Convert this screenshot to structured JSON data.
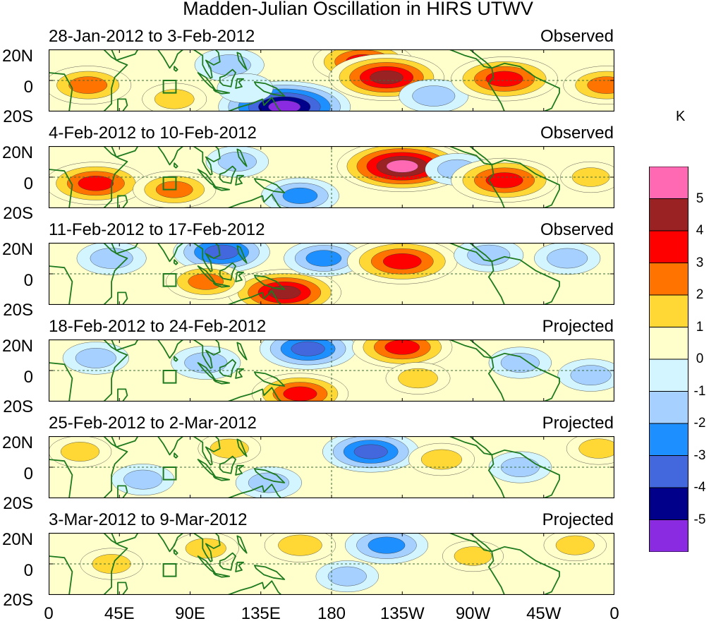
{
  "title": "Madden-Julian Oscillation in HIRS UTWV",
  "colorbar": {
    "unit": "K",
    "levels": [
      5,
      4,
      3,
      2,
      1,
      0,
      -1,
      -2,
      -3,
      -4,
      -5
    ],
    "level_labels": [
      "5",
      "4",
      "3",
      "2",
      "1",
      "0",
      "-1",
      "-2",
      "-3",
      "-4",
      "-5"
    ],
    "colors": [
      "#ff69b4",
      "#9b2222",
      "#ff0000",
      "#ff7400",
      "#ffd836",
      "#ffffcc",
      "#d3f5ff",
      "#a5d0ff",
      "#1e8fff",
      "#4367dd",
      "#00008b",
      "#8a2be2"
    ]
  },
  "chart_data": {
    "type": "contour-map-panels",
    "title": "Madden-Julian Oscillation in HIRS UTWV",
    "variable": "HIRS UTWV anomaly",
    "unit": "K",
    "x_ticks": [
      "0",
      "45E",
      "90E",
      "135E",
      "180",
      "135W",
      "90W",
      "45W",
      "0"
    ],
    "x_range_deg_east": [
      0,
      360
    ],
    "y_ticks": [
      "20N",
      "0",
      "20S"
    ],
    "y_range_deg": [
      -20,
      20
    ],
    "contour_levels": [
      -5,
      -4,
      -3,
      -2,
      -1,
      0,
      1,
      2,
      3,
      4,
      5
    ],
    "panels": [
      {
        "period": "28-Jan-2012 to 3-Feb-2012",
        "status": "Observed",
        "blobs": [
          {
            "lon": 25,
            "lat": -3,
            "value": 2.6
          },
          {
            "lon": 115,
            "lat": 10,
            "value": -1.6
          },
          {
            "lon": 150,
            "lat": -17,
            "value": -5.3
          },
          {
            "lon": 125,
            "lat": -5,
            "value": -0.8
          },
          {
            "lon": 200,
            "lat": 12,
            "value": 3.4
          },
          {
            "lon": 215,
            "lat": 2,
            "value": 4.3
          },
          {
            "lon": 245,
            "lat": -10,
            "value": -1.6
          },
          {
            "lon": 290,
            "lat": 1,
            "value": 3.8
          },
          {
            "lon": 355,
            "lat": -3,
            "value": 2.6
          },
          {
            "lon": 80,
            "lat": -12,
            "value": 1.3
          }
        ]
      },
      {
        "period": "4-Feb-2012 to 10-Feb-2012",
        "status": "Observed",
        "blobs": [
          {
            "lon": 30,
            "lat": -4,
            "value": 3.5
          },
          {
            "lon": 80,
            "lat": -8,
            "value": 2.4
          },
          {
            "lon": 120,
            "lat": 10,
            "value": -1.2
          },
          {
            "lon": 160,
            "lat": -12,
            "value": -2.1
          },
          {
            "lon": 225,
            "lat": 7,
            "value": 5.2
          },
          {
            "lon": 260,
            "lat": 5,
            "value": -1.3
          },
          {
            "lon": 290,
            "lat": -2,
            "value": 3.8
          },
          {
            "lon": 345,
            "lat": 0,
            "value": 1.1
          }
        ]
      },
      {
        "period": "11-Feb-2012 to 17-Feb-2012",
        "status": "Observed",
        "blobs": [
          {
            "lon": 40,
            "lat": 10,
            "value": -1.6
          },
          {
            "lon": 110,
            "lat": 14,
            "value": -3.2
          },
          {
            "lon": 150,
            "lat": -12,
            "value": 4.2
          },
          {
            "lon": 100,
            "lat": -5,
            "value": 2.2
          },
          {
            "lon": 175,
            "lat": 10,
            "value": -2.2
          },
          {
            "lon": 225,
            "lat": 8,
            "value": 4.0
          },
          {
            "lon": 280,
            "lat": 12,
            "value": -1.6
          },
          {
            "lon": 330,
            "lat": 10,
            "value": -1.4
          }
        ]
      },
      {
        "period": "18-Feb-2012 to 24-Feb-2012",
        "status": "Projected",
        "blobs": [
          {
            "lon": 30,
            "lat": 8,
            "value": -1.4
          },
          {
            "lon": 100,
            "lat": 5,
            "value": -1.6
          },
          {
            "lon": 165,
            "lat": 14,
            "value": -3.2
          },
          {
            "lon": 160,
            "lat": -15,
            "value": 3.2
          },
          {
            "lon": 225,
            "lat": 15,
            "value": 3.4
          },
          {
            "lon": 235,
            "lat": -5,
            "value": 1.3
          },
          {
            "lon": 300,
            "lat": 5,
            "value": -1.2
          },
          {
            "lon": 345,
            "lat": -3,
            "value": -1.4
          }
        ]
      },
      {
        "period": "25-Feb-2012 to 2-Mar-2012",
        "status": "Projected",
        "blobs": [
          {
            "lon": 20,
            "lat": 10,
            "value": 1.2
          },
          {
            "lon": 60,
            "lat": -8,
            "value": -1.2
          },
          {
            "lon": 115,
            "lat": 12,
            "value": 1.2
          },
          {
            "lon": 140,
            "lat": -10,
            "value": -1.4
          },
          {
            "lon": 205,
            "lat": 10,
            "value": -3.2
          },
          {
            "lon": 250,
            "lat": 5,
            "value": 1.4
          },
          {
            "lon": 300,
            "lat": 0,
            "value": -1.2
          },
          {
            "lon": 350,
            "lat": 12,
            "value": 1.3
          }
        ]
      },
      {
        "period": "3-Mar-2012 to 9-Mar-2012",
        "status": "Projected",
        "blobs": [
          {
            "lon": 40,
            "lat": 0,
            "value": 1.2
          },
          {
            "lon": 100,
            "lat": 10,
            "value": 1.4
          },
          {
            "lon": 160,
            "lat": 12,
            "value": 1.7
          },
          {
            "lon": 215,
            "lat": 12,
            "value": -2.4
          },
          {
            "lon": 190,
            "lat": -8,
            "value": -1.2
          },
          {
            "lon": 270,
            "lat": 5,
            "value": 1.1
          },
          {
            "lon": 335,
            "lat": 12,
            "value": 1.2
          }
        ]
      }
    ]
  }
}
